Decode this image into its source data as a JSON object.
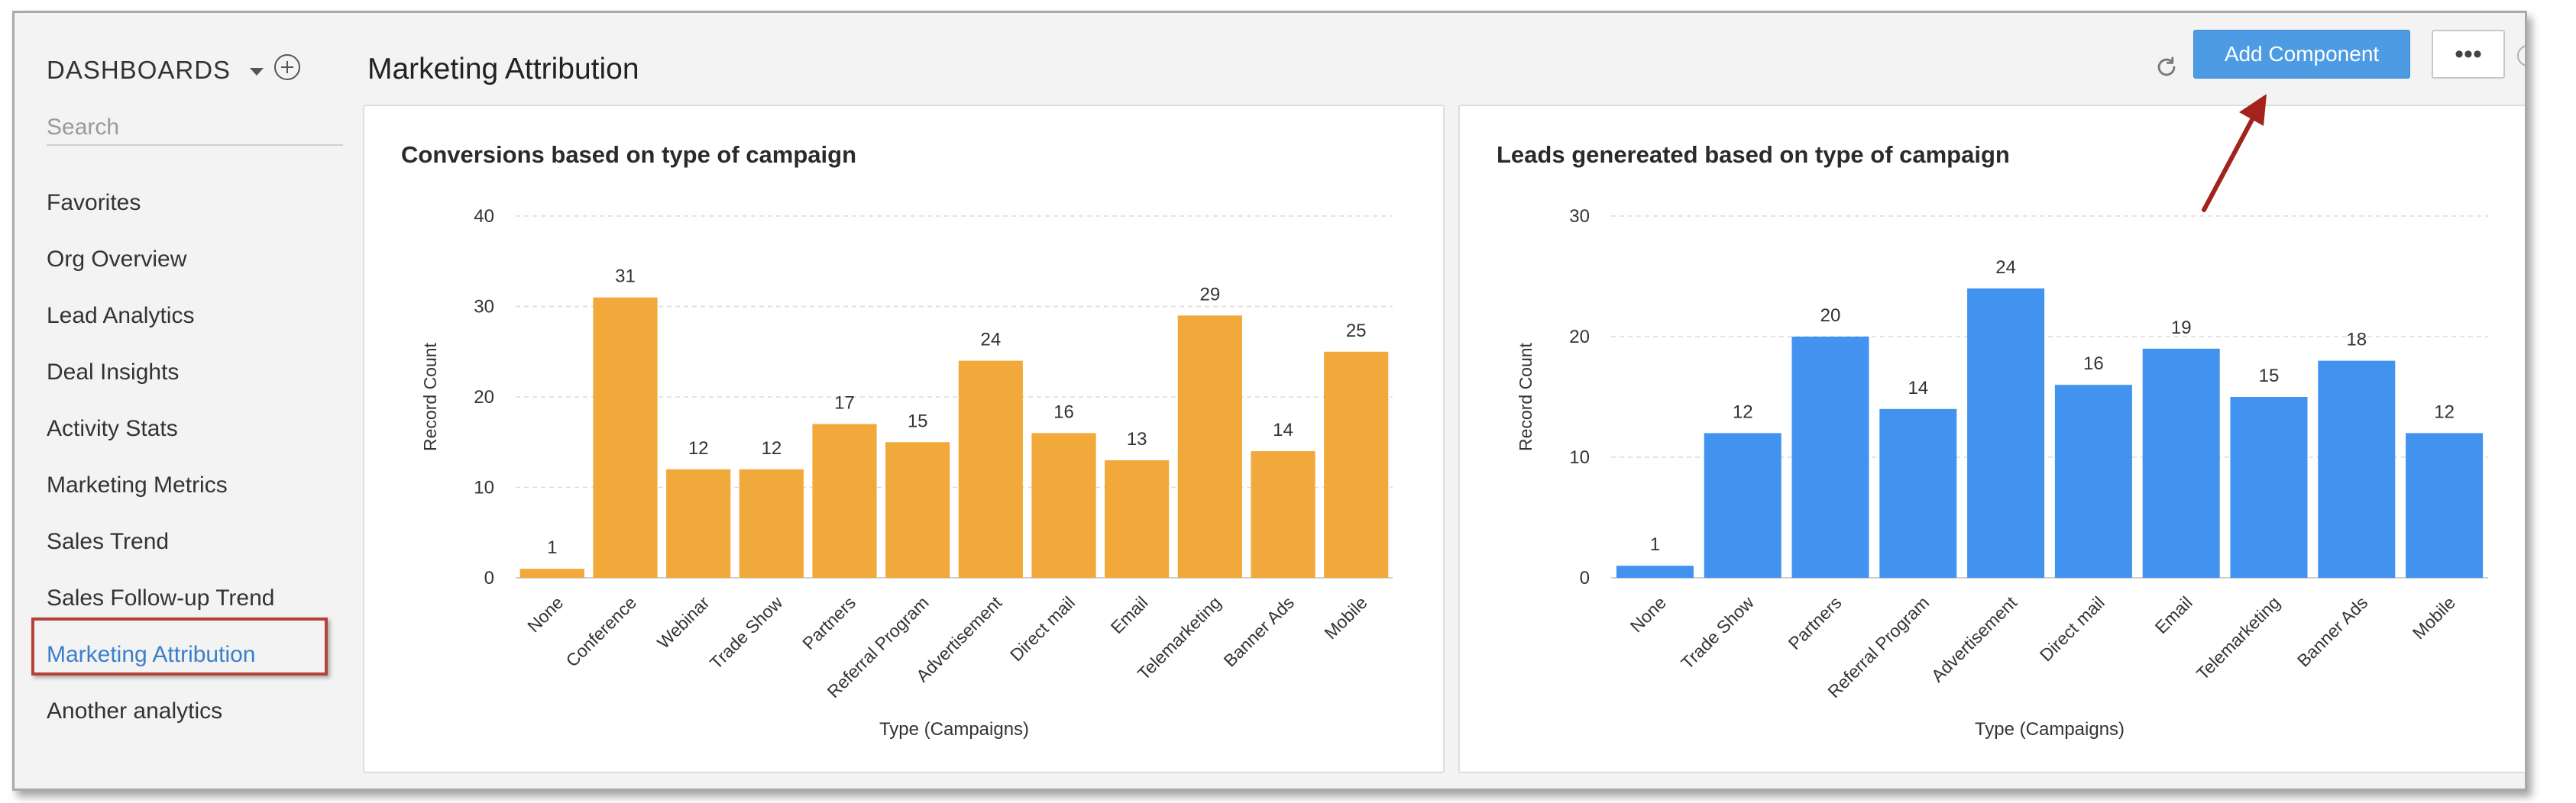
{
  "sidebar": {
    "title": "DASHBOARDS",
    "search_placeholder": "Search",
    "items": [
      {
        "label": "Favorites"
      },
      {
        "label": "Org Overview"
      },
      {
        "label": "Lead Analytics"
      },
      {
        "label": "Deal Insights"
      },
      {
        "label": "Activity Stats"
      },
      {
        "label": "Marketing Metrics"
      },
      {
        "label": "Sales Trend"
      },
      {
        "label": "Sales Follow-up Trend"
      },
      {
        "label": "Marketing Attribution",
        "active": true
      },
      {
        "label": "Another analytics"
      }
    ]
  },
  "header": {
    "title": "Marketing Attribution",
    "add_component_label": "Add Component",
    "more_label": "•••",
    "help_label": "?"
  },
  "colors": {
    "accent": "#4d9be3",
    "active_nav": "#3a7fc9",
    "highlight_border": "#b5413a",
    "arrow": "#a3221c",
    "orange_bar": "#f2a93b",
    "blue_bar": "#4293ef"
  },
  "icons": [
    "chevron-down-icon",
    "plus-circle-icon",
    "refresh-icon",
    "more-icon",
    "help-icon",
    "arrow-annotation"
  ],
  "chart_data": [
    {
      "type": "bar",
      "title": "Conversions based on type of campaign",
      "xlabel": "Type (Campaigns)",
      "ylabel": "Record Count",
      "ylim": [
        0,
        40
      ],
      "yticks": [
        0,
        10,
        20,
        30,
        40
      ],
      "grid": true,
      "color": "#f2a93b",
      "categories": [
        "None",
        "Conference",
        "Webinar",
        "Trade Show",
        "Partners",
        "Referral Program",
        "Advertisement",
        "Direct mail",
        "Email",
        "Telemarketing",
        "Banner Ads",
        "Mobile"
      ],
      "values": [
        1,
        31,
        12,
        12,
        17,
        15,
        24,
        16,
        13,
        29,
        14,
        25
      ]
    },
    {
      "type": "bar",
      "title": "Leads genereated based on type of campaign",
      "xlabel": "Type (Campaigns)",
      "ylabel": "Record Count",
      "ylim": [
        0,
        30
      ],
      "yticks": [
        0,
        10,
        20,
        30
      ],
      "grid": true,
      "color": "#4293ef",
      "categories": [
        "None",
        "Trade Show",
        "Partners",
        "Referral Program",
        "Advertisement",
        "Direct mail",
        "Email",
        "Telemarketing",
        "Banner Ads",
        "Mobile"
      ],
      "values": [
        1,
        12,
        20,
        14,
        24,
        16,
        19,
        15,
        18,
        12
      ]
    }
  ]
}
